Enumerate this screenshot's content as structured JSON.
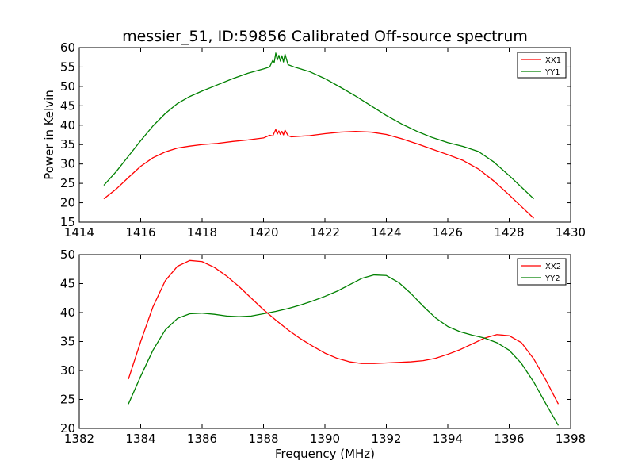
{
  "chart_data": [
    {
      "type": "line",
      "title": "messier_51, ID:59856 Calibrated Off-source spectrum",
      "xlabel": "",
      "ylabel": "Power in Kelvin",
      "xlim": [
        1414,
        1430
      ],
      "ylim": [
        15,
        60
      ],
      "xticks": [
        1414,
        1416,
        1418,
        1420,
        1422,
        1424,
        1426,
        1428,
        1430
      ],
      "yticks": [
        15,
        20,
        25,
        30,
        35,
        40,
        45,
        50,
        55,
        60
      ],
      "legend_position": "top-right",
      "series": [
        {
          "name": "XX1",
          "color": "#ff0000",
          "points": [
            [
              1414.8,
              21.0
            ],
            [
              1415.2,
              23.5
            ],
            [
              1415.6,
              26.5
            ],
            [
              1416.0,
              29.4
            ],
            [
              1416.4,
              31.6
            ],
            [
              1416.8,
              33.1
            ],
            [
              1417.2,
              34.1
            ],
            [
              1417.6,
              34.6
            ],
            [
              1418.0,
              35.0
            ],
            [
              1418.5,
              35.3
            ],
            [
              1419.0,
              35.8
            ],
            [
              1419.5,
              36.2
            ],
            [
              1420.0,
              36.7
            ],
            [
              1420.2,
              37.4
            ],
            [
              1420.3,
              37.2
            ],
            [
              1420.4,
              38.9
            ],
            [
              1420.45,
              37.7
            ],
            [
              1420.5,
              38.5
            ],
            [
              1420.55,
              37.6
            ],
            [
              1420.6,
              38.4
            ],
            [
              1420.65,
              37.5
            ],
            [
              1420.7,
              38.7
            ],
            [
              1420.8,
              37.3
            ],
            [
              1420.9,
              37.0
            ],
            [
              1421.5,
              37.3
            ],
            [
              1422.0,
              37.8
            ],
            [
              1422.5,
              38.2
            ],
            [
              1423.0,
              38.4
            ],
            [
              1423.5,
              38.2
            ],
            [
              1424.0,
              37.6
            ],
            [
              1424.5,
              36.5
            ],
            [
              1425.0,
              35.2
            ],
            [
              1425.5,
              33.8
            ],
            [
              1426.0,
              32.4
            ],
            [
              1426.5,
              30.9
            ],
            [
              1427.0,
              28.7
            ],
            [
              1427.5,
              25.6
            ],
            [
              1428.0,
              22.0
            ],
            [
              1428.4,
              19.0
            ],
            [
              1428.8,
              16.0
            ]
          ]
        },
        {
          "name": "YY1",
          "color": "#008000",
          "points": [
            [
              1414.8,
              24.5
            ],
            [
              1415.2,
              28.0
            ],
            [
              1415.6,
              32.0
            ],
            [
              1416.0,
              36.0
            ],
            [
              1416.4,
              39.8
            ],
            [
              1416.8,
              43.0
            ],
            [
              1417.2,
              45.6
            ],
            [
              1417.6,
              47.4
            ],
            [
              1418.0,
              48.8
            ],
            [
              1418.5,
              50.4
            ],
            [
              1419.0,
              52.0
            ],
            [
              1419.5,
              53.4
            ],
            [
              1420.0,
              54.5
            ],
            [
              1420.2,
              55.0
            ],
            [
              1420.3,
              56.7
            ],
            [
              1420.35,
              56.2
            ],
            [
              1420.4,
              58.6
            ],
            [
              1420.45,
              56.8
            ],
            [
              1420.5,
              58.0
            ],
            [
              1420.55,
              56.5
            ],
            [
              1420.6,
              57.9
            ],
            [
              1420.65,
              56.3
            ],
            [
              1420.7,
              58.3
            ],
            [
              1420.8,
              55.6
            ],
            [
              1421.0,
              55.0
            ],
            [
              1421.5,
              53.8
            ],
            [
              1422.0,
              52.0
            ],
            [
              1422.5,
              49.8
            ],
            [
              1423.0,
              47.5
            ],
            [
              1423.5,
              45.0
            ],
            [
              1424.0,
              42.5
            ],
            [
              1424.5,
              40.3
            ],
            [
              1425.0,
              38.4
            ],
            [
              1425.5,
              36.8
            ],
            [
              1426.0,
              35.5
            ],
            [
              1426.5,
              34.5
            ],
            [
              1427.0,
              33.2
            ],
            [
              1427.5,
              30.5
            ],
            [
              1428.0,
              27.0
            ],
            [
              1428.4,
              24.0
            ],
            [
              1428.8,
              21.0
            ]
          ]
        }
      ]
    },
    {
      "type": "line",
      "title": "",
      "xlabel": "Frequency (MHz)",
      "ylabel": "",
      "xlim": [
        1382,
        1398
      ],
      "ylim": [
        20,
        50
      ],
      "xticks": [
        1382,
        1384,
        1386,
        1388,
        1390,
        1392,
        1394,
        1396,
        1398
      ],
      "yticks": [
        20,
        25,
        30,
        35,
        40,
        45,
        50
      ],
      "legend_position": "top-right",
      "series": [
        {
          "name": "XX2",
          "color": "#ff0000",
          "points": [
            [
              1383.6,
              28.5
            ],
            [
              1384.0,
              35.0
            ],
            [
              1384.4,
              41.0
            ],
            [
              1384.8,
              45.5
            ],
            [
              1385.2,
              48.0
            ],
            [
              1385.6,
              49.0
            ],
            [
              1386.0,
              48.8
            ],
            [
              1386.4,
              47.8
            ],
            [
              1386.8,
              46.3
            ],
            [
              1387.2,
              44.5
            ],
            [
              1387.6,
              42.5
            ],
            [
              1388.0,
              40.5
            ],
            [
              1388.4,
              38.7
            ],
            [
              1388.8,
              37.0
            ],
            [
              1389.2,
              35.5
            ],
            [
              1389.6,
              34.2
            ],
            [
              1390.0,
              33.0
            ],
            [
              1390.4,
              32.1
            ],
            [
              1390.8,
              31.5
            ],
            [
              1391.2,
              31.2
            ],
            [
              1391.6,
              31.2
            ],
            [
              1392.0,
              31.3
            ],
            [
              1392.4,
              31.4
            ],
            [
              1392.8,
              31.5
            ],
            [
              1393.2,
              31.7
            ],
            [
              1393.6,
              32.1
            ],
            [
              1394.0,
              32.8
            ],
            [
              1394.4,
              33.6
            ],
            [
              1394.8,
              34.6
            ],
            [
              1395.2,
              35.6
            ],
            [
              1395.6,
              36.2
            ],
            [
              1396.0,
              36.0
            ],
            [
              1396.4,
              34.8
            ],
            [
              1396.8,
              32.0
            ],
            [
              1397.2,
              28.3
            ],
            [
              1397.6,
              24.2
            ]
          ]
        },
        {
          "name": "YY2",
          "color": "#008000",
          "points": [
            [
              1383.6,
              24.2
            ],
            [
              1384.0,
              29.0
            ],
            [
              1384.4,
              33.5
            ],
            [
              1384.8,
              37.0
            ],
            [
              1385.2,
              39.0
            ],
            [
              1385.6,
              39.8
            ],
            [
              1386.0,
              39.9
            ],
            [
              1386.4,
              39.7
            ],
            [
              1386.8,
              39.4
            ],
            [
              1387.2,
              39.3
            ],
            [
              1387.6,
              39.4
            ],
            [
              1388.0,
              39.8
            ],
            [
              1388.4,
              40.2
            ],
            [
              1388.8,
              40.7
            ],
            [
              1389.2,
              41.3
            ],
            [
              1389.6,
              42.0
            ],
            [
              1390.0,
              42.8
            ],
            [
              1390.4,
              43.7
            ],
            [
              1390.8,
              44.8
            ],
            [
              1391.2,
              45.9
            ],
            [
              1391.6,
              46.5
            ],
            [
              1392.0,
              46.4
            ],
            [
              1392.4,
              45.2
            ],
            [
              1392.8,
              43.3
            ],
            [
              1393.2,
              41.1
            ],
            [
              1393.6,
              39.1
            ],
            [
              1394.0,
              37.6
            ],
            [
              1394.4,
              36.7
            ],
            [
              1394.8,
              36.1
            ],
            [
              1395.2,
              35.6
            ],
            [
              1395.6,
              34.8
            ],
            [
              1396.0,
              33.5
            ],
            [
              1396.4,
              31.2
            ],
            [
              1396.8,
              28.0
            ],
            [
              1397.2,
              24.2
            ],
            [
              1397.6,
              20.5
            ]
          ]
        }
      ]
    }
  ]
}
